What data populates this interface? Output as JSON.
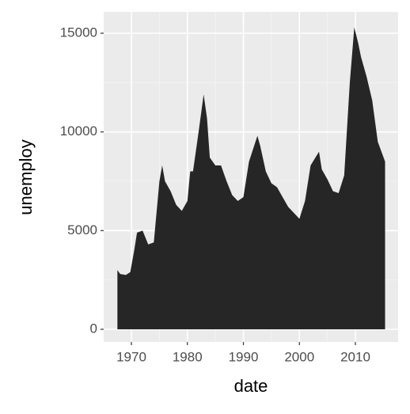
{
  "chart_data": {
    "type": "area",
    "x_label": "date",
    "y_label": "unemploy",
    "x": [
      1967.5,
      1968,
      1969,
      1969.8,
      1970.5,
      1971,
      1972,
      1973,
      1974,
      1975,
      1975.5,
      1976,
      1977,
      1978,
      1979,
      1980,
      1980.5,
      1981,
      1982,
      1982.9,
      1983.5,
      1984,
      1985,
      1986,
      1987,
      1988,
      1989,
      1990,
      1991,
      1992.5,
      1993,
      1994,
      1995,
      1996,
      1997,
      1998,
      1999,
      2000,
      2001,
      2002,
      2003.5,
      2004,
      2005,
      2006,
      2007,
      2008,
      2009,
      2009.8,
      2010.5,
      2011,
      2012,
      2013,
      2014,
      2015.3
    ],
    "values": [
      3000,
      2800,
      2750,
      2900,
      4000,
      4900,
      5000,
      4300,
      4400,
      7500,
      8300,
      7500,
      7000,
      6300,
      6000,
      6500,
      8000,
      8000,
      10000,
      11900,
      10700,
      8700,
      8300,
      8300,
      7500,
      6800,
      6500,
      6700,
      8500,
      9800,
      9300,
      8000,
      7400,
      7200,
      6700,
      6200,
      5900,
      5600,
      6500,
      8300,
      9000,
      8100,
      7600,
      7000,
      6900,
      7800,
      12500,
      15300,
      14500,
      13800,
      12800,
      11600,
      9500,
      8500
    ],
    "color": "#262626",
    "xlim": [
      1965.05,
      2017.63
    ],
    "xticks": [
      1970,
      1980,
      1990,
      2000,
      2010
    ],
    "ylim": [
      -642,
      16083
    ],
    "yticks": [
      0,
      5000,
      10000,
      15000
    ],
    "grid": true
  }
}
